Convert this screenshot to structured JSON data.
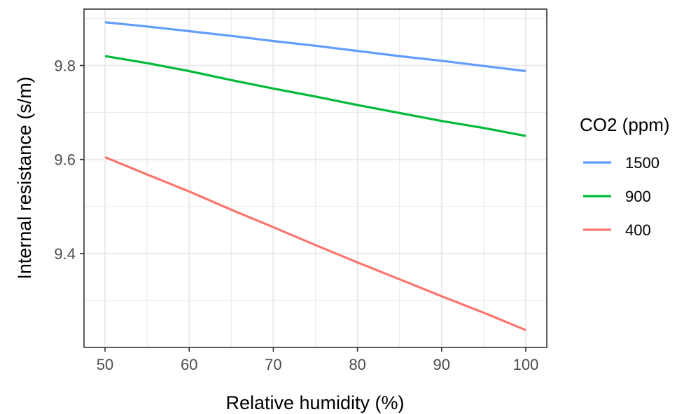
{
  "chart_data": {
    "type": "line",
    "xlabel": "Relative humidity (%)",
    "ylabel": "Internal resistance (s/m)",
    "xlim": [
      47.5,
      102.5
    ],
    "ylim": [
      9.2,
      9.92
    ],
    "x_ticks": [
      50,
      60,
      70,
      80,
      90,
      100
    ],
    "x_tick_labels": [
      "50",
      "60",
      "70",
      "80",
      "90",
      "100"
    ],
    "y_ticks": [
      9.4,
      9.6,
      9.8
    ],
    "y_tick_labels": [
      "9.4",
      "9.6",
      "9.8"
    ],
    "grid": true,
    "legend": {
      "title": "CO2 (ppm)",
      "position": "right"
    },
    "series": [
      {
        "name": "1500",
        "color": "#619CFF",
        "x": [
          50,
          55,
          60,
          65,
          70,
          75,
          80,
          85,
          90,
          95,
          100
        ],
        "y": [
          9.892,
          9.883,
          9.873,
          9.863,
          9.852,
          9.842,
          9.831,
          9.82,
          9.81,
          9.799,
          9.788
        ]
      },
      {
        "name": "900",
        "color": "#00BA38",
        "x": [
          50,
          55,
          60,
          65,
          70,
          75,
          80,
          85,
          90,
          95,
          100
        ],
        "y": [
          9.82,
          9.805,
          9.788,
          9.769,
          9.751,
          9.734,
          9.716,
          9.699,
          9.682,
          9.667,
          9.65
        ]
      },
      {
        "name": "400",
        "color": "#F8766D",
        "x": [
          50,
          55,
          60,
          65,
          70,
          75,
          80,
          85,
          90,
          95,
          100
        ],
        "y": [
          9.605,
          9.568,
          9.532,
          9.493,
          9.456,
          9.418,
          9.381,
          9.345,
          9.309,
          9.274,
          9.237
        ]
      }
    ]
  }
}
